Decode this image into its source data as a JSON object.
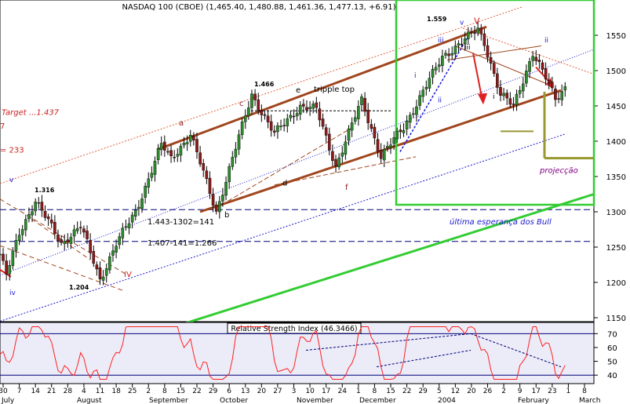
{
  "chart_data": [
    {
      "type": "candlestick",
      "title": "NASDAQ 100 (CBOE) (1,465.40, 1,480.88, 1,461.36, 1,477.13, +6.91)",
      "xlabel": "",
      "ylabel": "",
      "ylim": [
        1130,
        1590
      ],
      "y_ticks": [
        1150,
        1200,
        1250,
        1300,
        1350,
        1400,
        1450,
        1500,
        1550
      ],
      "colors": {
        "up": "#2e8b2e",
        "down": "#8b1a1a",
        "wick": "#000000",
        "channel": "#a0461e",
        "target_dots": "#e0603c",
        "blue_dots": "#1a1acd",
        "navy_dash": "#00007a",
        "green": "#33cc33",
        "olive": "#999933",
        "red": "#e02020"
      },
      "key_points": [
        {
          "label": "1.316",
          "x": "2003-07-16",
          "y": 1316
        },
        {
          "label": "1.204",
          "x": "2003-08-11",
          "y": 1204
        },
        {
          "label": "1.466",
          "x": "2003-10-15",
          "y": 1466
        },
        {
          "label": "1.559",
          "x": "2004-01-21",
          "y": 1559
        }
      ],
      "annotations": [
        {
          "name": "target",
          "text": "Target ...1.437"
        },
        {
          "name": "seven",
          "text": "7"
        },
        {
          "name": "eq233",
          "text": "= 233"
        },
        {
          "name": "w-a",
          "text": "a"
        },
        {
          "name": "w-b",
          "text": "b"
        },
        {
          "name": "w-c",
          "text": "c"
        },
        {
          "name": "w-d",
          "text": "d"
        },
        {
          "name": "w-e",
          "text": "e"
        },
        {
          "name": "w-f",
          "text": "f"
        },
        {
          "name": "tripple",
          "text": "tripple top"
        },
        {
          "name": "w-v-low",
          "text": "v"
        },
        {
          "name": "w-iv-low",
          "text": "iv"
        },
        {
          "name": "w-IV",
          "text": "IV"
        },
        {
          "name": "w-V",
          "text": "V"
        },
        {
          "name": "w-v-top",
          "text": "v"
        },
        {
          "name": "w-iii-top",
          "text": "iii"
        },
        {
          "name": "w-iii-left",
          "text": "iii"
        },
        {
          "name": "w-i-left",
          "text": "i"
        },
        {
          "name": "w-ii-left",
          "text": "ii"
        },
        {
          "name": "w-i-right",
          "text": "i"
        },
        {
          "name": "w-ii-right",
          "text": "ii"
        },
        {
          "name": "eq1",
          "text": "1.443-1302=141"
        },
        {
          "name": "eq2",
          "text": "1.407-141=1.266"
        },
        {
          "name": "ultima",
          "text": "última esperança dos Bull"
        },
        {
          "name": "projecao",
          "text": "projecção"
        }
      ],
      "x_axis": {
        "day_ticks": [
          "30",
          "7",
          "14",
          "21",
          "28",
          "4",
          "11",
          "18",
          "25",
          "2",
          "8",
          "15",
          "22",
          "29",
          "6",
          "13",
          "20",
          "27",
          "3",
          "10",
          "17",
          "24",
          "1",
          "8",
          "15",
          "22",
          "29",
          "5",
          "12",
          "20",
          "26",
          "2",
          "9",
          "17",
          "23",
          "1",
          "8"
        ],
        "month_labels": [
          "July",
          "August",
          "September",
          "October",
          "November",
          "December",
          "2004",
          "February",
          "March"
        ]
      }
    },
    {
      "type": "line",
      "title": "Relative Strength Index (46.3466)",
      "ylim": [
        35,
        77
      ],
      "y_ticks": [
        40,
        50,
        60,
        70
      ],
      "color": "#ff2020"
    }
  ]
}
